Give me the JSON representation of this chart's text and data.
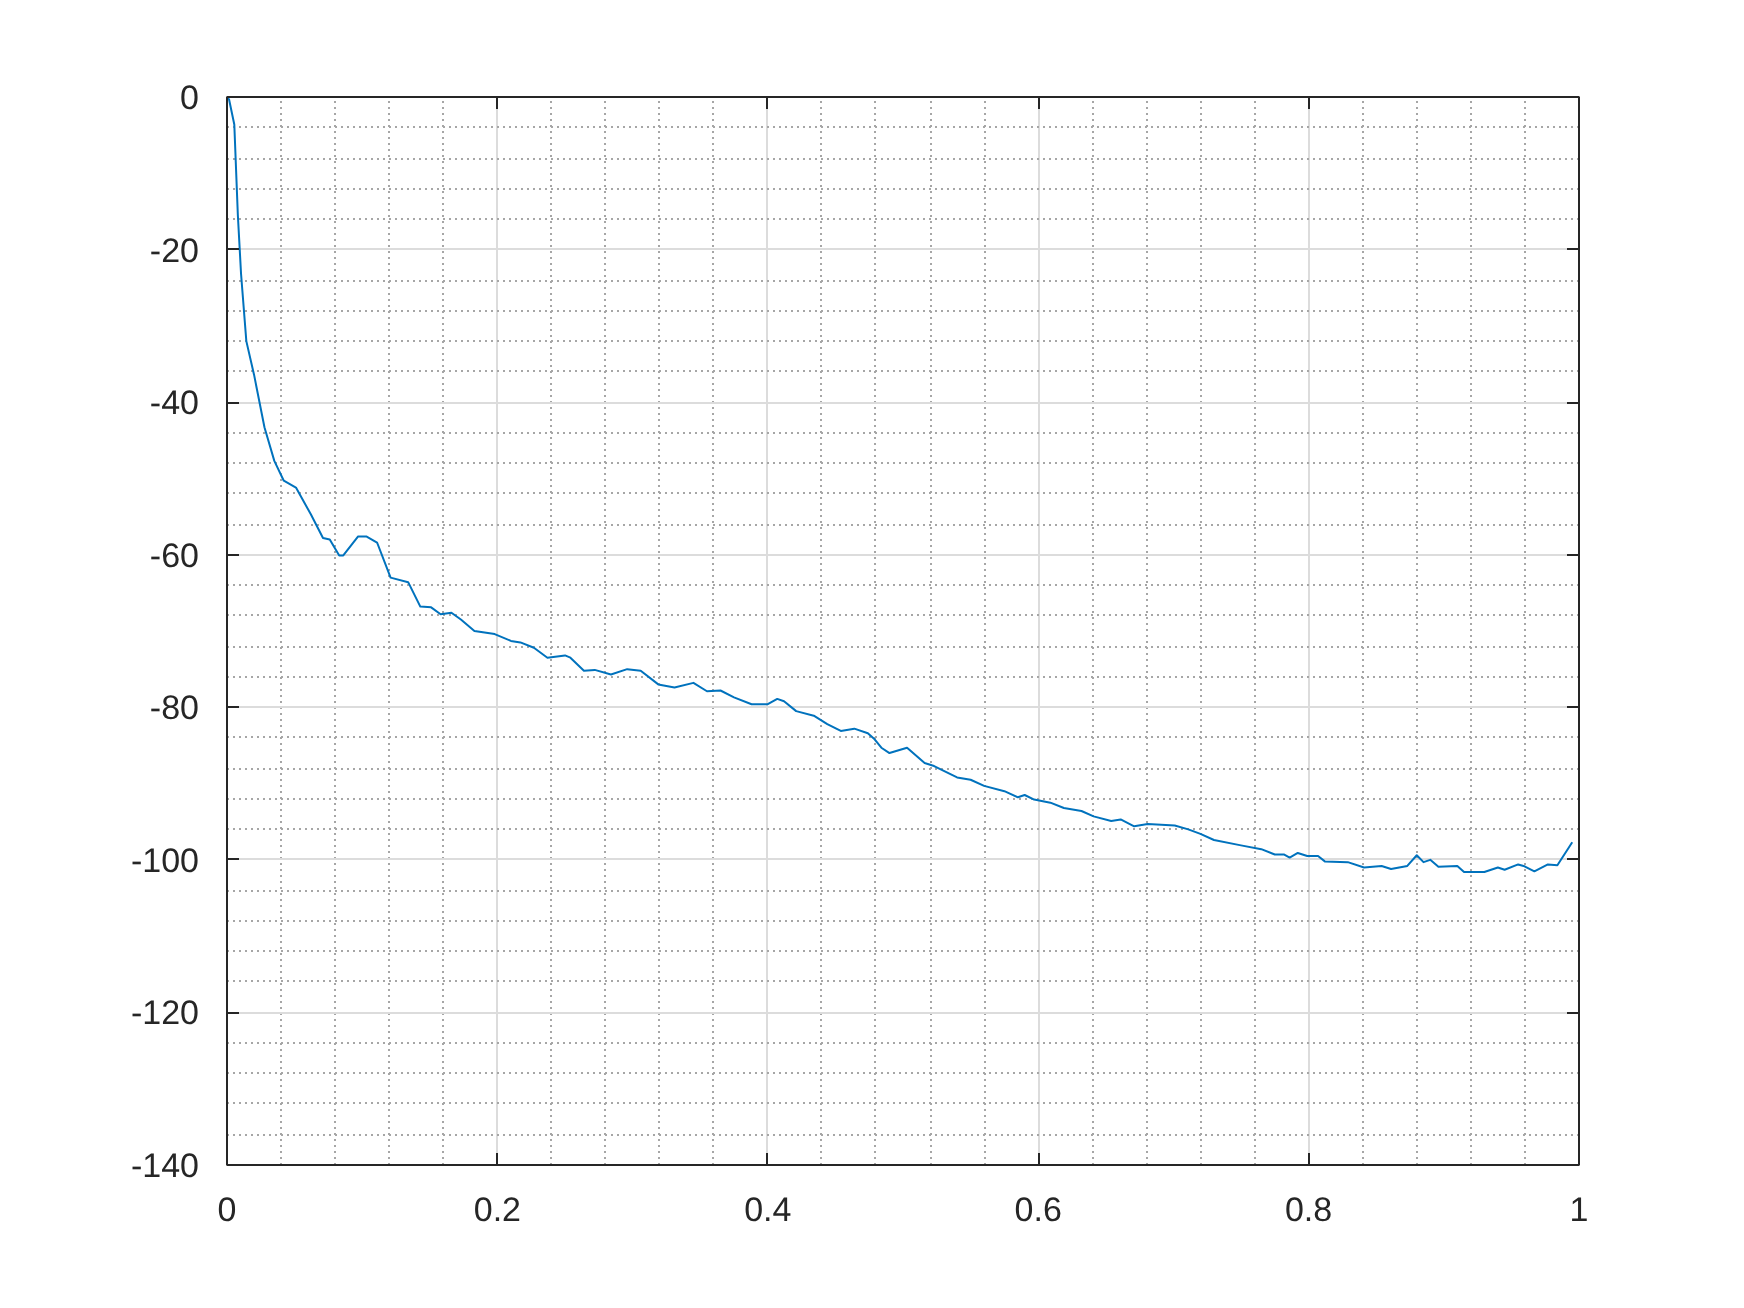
{
  "chart_data": {
    "type": "line",
    "x": [
      0,
      0.0015,
      0.0054,
      0.008,
      0.0104,
      0.0143,
      0.02,
      0.0277,
      0.035,
      0.042,
      0.051,
      0.062,
      0.071,
      0.076,
      0.083,
      0.086,
      0.097,
      0.103,
      0.111,
      0.121,
      0.134,
      0.143,
      0.151,
      0.158,
      0.166,
      0.173,
      0.183,
      0.198,
      0.21,
      0.217,
      0.227,
      0.237,
      0.25,
      0.254,
      0.264,
      0.272,
      0.284,
      0.296,
      0.306,
      0.319,
      0.331,
      0.345,
      0.355,
      0.365,
      0.375,
      0.388,
      0.4,
      0.407,
      0.412,
      0.421,
      0.434,
      0.444,
      0.454,
      0.464,
      0.474,
      0.479,
      0.484,
      0.49,
      0.503,
      0.516,
      0.523,
      0.54,
      0.55,
      0.56,
      0.575,
      0.585,
      0.59,
      0.597,
      0.609,
      0.619,
      0.632,
      0.641,
      0.654,
      0.661,
      0.671,
      0.681,
      0.701,
      0.711,
      0.72,
      0.73,
      0.75,
      0.765,
      0.775,
      0.782,
      0.786,
      0.792,
      0.799,
      0.807,
      0.812,
      0.829,
      0.841,
      0.854,
      0.861,
      0.873,
      0.88,
      0.885,
      0.89,
      0.896,
      0.91,
      0.915,
      0.93,
      0.94,
      0.945,
      0.955,
      0.959,
      0.967,
      0.977,
      0.984,
      0.995
    ],
    "series": [
      {
        "color": "#0072bd",
        "values": [
          0,
          -0.3,
          -3.6,
          -15.4,
          -23.2,
          -32,
          -36.4,
          -43.3,
          -47.7,
          -50.3,
          -51.2,
          -54.7,
          -57.8,
          -58,
          -60.1,
          -60.1,
          -57.6,
          -57.6,
          -58.4,
          -63,
          -63.6,
          -66.8,
          -66.9,
          -67.8,
          -67.6,
          -68.5,
          -70,
          -70.4,
          -71.3,
          -71.5,
          -72.2,
          -73.5,
          -73.2,
          -73.5,
          -75.2,
          -75.1,
          -75.7,
          -75,
          -75.2,
          -77,
          -77.4,
          -76.8,
          -77.9,
          -77.8,
          -78.7,
          -79.6,
          -79.6,
          -78.9,
          -79.2,
          -80.5,
          -81.1,
          -82.2,
          -83.1,
          -82.8,
          -83.4,
          -84.2,
          -85.3,
          -86,
          -85.3,
          -87.3,
          -87.7,
          -89.2,
          -89.5,
          -90.3,
          -91,
          -91.8,
          -91.5,
          -92.1,
          -92.5,
          -93.2,
          -93.6,
          -94.3,
          -94.9,
          -94.7,
          -95.6,
          -95.3,
          -95.5,
          -96,
          -96.6,
          -97.4,
          -98.1,
          -98.6,
          -99.3,
          -99.3,
          -99.7,
          -99.1,
          -99.5,
          -99.5,
          -100.2,
          -100.3,
          -101,
          -100.8,
          -101.2,
          -100.8,
          -99.4,
          -100.3,
          -100,
          -100.9,
          -100.8,
          -101.6,
          -101.6,
          -101,
          -101.3,
          -100.6,
          -100.8,
          -101.5,
          -100.6,
          -100.7,
          -97.7
        ]
      }
    ],
    "xlim": [
      0,
      1
    ],
    "ylim": [
      -140,
      0
    ],
    "xticks": [
      0,
      {
        "value": 0.04,
        "label": null
      },
      {
        "value": 0.08,
        "label": null
      },
      {
        "value": 0.12,
        "label": null
      },
      {
        "value": 0.16,
        "label": null
      },
      0.2,
      {
        "value": 0.24,
        "label": null
      },
      {
        "value": 0.28,
        "label": null
      },
      {
        "value": 0.32,
        "label": null
      },
      {
        "value": 0.36,
        "label": null
      },
      0.4,
      {
        "value": 0.44,
        "label": null
      },
      {
        "value": 0.48,
        "label": null
      },
      {
        "value": 0.52,
        "label": null
      },
      {
        "value": 0.56,
        "label": null
      },
      0.6,
      {
        "value": 0.64,
        "label": null
      },
      {
        "value": 0.68,
        "label": null
      },
      {
        "value": 0.72,
        "label": null
      },
      {
        "value": 0.76,
        "label": null
      },
      0.8,
      {
        "value": 0.84,
        "label": null
      },
      {
        "value": 0.88,
        "label": null
      },
      {
        "value": 0.92,
        "label": null
      },
      {
        "value": 0.96,
        "label": null
      },
      1
    ],
    "yticks": [
      -140,
      {
        "value": -136,
        "label": null
      },
      {
        "value": -132,
        "label": null
      },
      {
        "value": -128,
        "label": null
      },
      {
        "value": -124,
        "label": null
      },
      -120,
      {
        "value": -116,
        "label": null
      },
      {
        "value": -112,
        "label": null
      },
      {
        "value": -108,
        "label": null
      },
      {
        "value": -104,
        "label": null
      },
      -100,
      {
        "value": -96,
        "label": null
      },
      {
        "value": -92,
        "label": null
      },
      {
        "value": -88,
        "label": null
      },
      {
        "value": -84,
        "label": null
      },
      -80,
      {
        "value": -76,
        "label": null
      },
      {
        "value": -72,
        "label": null
      },
      {
        "value": -68,
        "label": null
      },
      {
        "value": -64,
        "label": null
      },
      -60,
      {
        "value": -56,
        "label": null
      },
      {
        "value": -52,
        "label": null
      },
      {
        "value": -48,
        "label": null
      },
      {
        "value": -44,
        "label": null
      },
      -40,
      {
        "value": -36,
        "label": null
      },
      {
        "value": -32,
        "label": null
      },
      {
        "value": -28,
        "label": null
      },
      {
        "value": -24,
        "label": null
      },
      -20,
      {
        "value": -16,
        "label": null
      },
      {
        "value": -12,
        "label": null
      },
      {
        "value": -8,
        "label": null
      },
      {
        "value": -4,
        "label": null
      },
      0
    ],
    "grid": true
  }
}
